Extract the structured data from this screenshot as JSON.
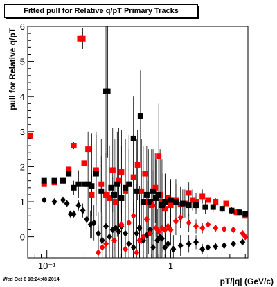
{
  "title": "Fitted pull for Relative q/pT  Primary Tracks",
  "timestamp": "Wed Oct  8 18:24:48 2014",
  "chart_data": {
    "type": "scatter",
    "title": "Fitted pull for Relative q/pT  Primary Tracks",
    "xlabel": "pT/|q| (GeV/c)",
    "ylabel": "pull for Relative q/pT",
    "xscale": "log",
    "xlim": [
      0.07,
      4.2
    ],
    "ylim": [
      -0.6,
      6
    ],
    "x_tick_labels": [
      {
        "value": 0.1,
        "label": "10⁻¹"
      },
      {
        "value": 1,
        "label": "1"
      }
    ],
    "y_ticks": [
      0,
      1,
      2,
      3,
      4,
      5,
      6
    ],
    "grid": false,
    "legend": "none",
    "series": [
      {
        "marker": "square",
        "color": "#ff0000",
        "points": [
          [
            0.073,
            2.88
          ],
          [
            0.095,
            1.5
          ],
          [
            0.115,
            1.55
          ],
          [
            0.135,
            1.6
          ],
          [
            0.15,
            1.92
          ],
          [
            0.165,
            2.6
          ],
          [
            0.185,
            5.65
          ],
          [
            0.195,
            5.65
          ],
          [
            0.2,
            2.1
          ],
          [
            0.215,
            2.5
          ],
          [
            0.23,
            1.2
          ],
          [
            0.25,
            1.9
          ],
          [
            0.275,
            1.5
          ],
          [
            0.3,
            1.2
          ],
          [
            0.32,
            1.1
          ],
          [
            0.34,
            1.9
          ],
          [
            0.36,
            1.0
          ],
          [
            0.38,
            1.6
          ],
          [
            0.4,
            1.85
          ],
          [
            0.43,
            1.3
          ],
          [
            0.46,
            1.5
          ],
          [
            0.5,
            1.7
          ],
          [
            0.54,
            2.05
          ],
          [
            0.58,
            1.3
          ],
          [
            0.62,
            1.8
          ],
          [
            0.66,
            1.0
          ],
          [
            0.7,
            0.9
          ],
          [
            0.75,
            1.4
          ],
          [
            0.8,
            2.3
          ],
          [
            0.82,
            1.2
          ],
          [
            0.85,
            1.0
          ],
          [
            0.9,
            0.8
          ],
          [
            0.95,
            1.1
          ],
          [
            1.0,
            0.9
          ],
          [
            1.1,
            1.05
          ],
          [
            1.2,
            0.92
          ],
          [
            1.3,
            0.95
          ],
          [
            1.4,
            1.25
          ],
          [
            1.5,
            1.05
          ],
          [
            1.6,
            1.0
          ],
          [
            1.8,
            1.15
          ],
          [
            2.0,
            1.05
          ],
          [
            2.3,
            1.0
          ],
          [
            2.8,
            0.95
          ],
          [
            3.4,
            0.7
          ],
          [
            4.0,
            0.6
          ]
        ],
        "errors": [
          0.05,
          0.05,
          0.05,
          0.05,
          0.1,
          0.1,
          0.3,
          0.3,
          0.5,
          0.5,
          0.6,
          1.0,
          0.8,
          1.2,
          1.5,
          1.2,
          1.8,
          1.5,
          1.2,
          1.5,
          1.0,
          1.2,
          1.0,
          1.5,
          1.2,
          1.5,
          1.6,
          1.0,
          1.5,
          1.3,
          1.2,
          1.0,
          0.8,
          0.7,
          0.6,
          0.5,
          0.4,
          0.3,
          0.3,
          0.25,
          0.2,
          0.15,
          0.12,
          0.1,
          0.08,
          0.06
        ]
      },
      {
        "marker": "square",
        "color": "#000000",
        "points": [
          [
            0.095,
            1.6
          ],
          [
            0.115,
            1.6
          ],
          [
            0.135,
            1.6
          ],
          [
            0.15,
            1.8
          ],
          [
            0.165,
            1.4
          ],
          [
            0.18,
            1.5
          ],
          [
            0.2,
            1.5
          ],
          [
            0.215,
            1.5
          ],
          [
            0.23,
            1.45
          ],
          [
            0.25,
            1.8
          ],
          [
            0.275,
            1.3
          ],
          [
            0.3,
            4.15
          ],
          [
            0.31,
            4.15
          ],
          [
            0.33,
            1.4
          ],
          [
            0.35,
            1.2
          ],
          [
            0.37,
            1.5
          ],
          [
            0.4,
            1.1
          ],
          [
            0.43,
            1.4
          ],
          [
            0.46,
            1.5
          ],
          [
            0.5,
            2.8
          ],
          [
            0.53,
            1.3
          ],
          [
            0.57,
            3.45
          ],
          [
            0.6,
            1.0
          ],
          [
            0.64,
            1.2
          ],
          [
            0.68,
            1.0
          ],
          [
            0.72,
            1.3
          ],
          [
            0.76,
            1.1
          ],
          [
            0.8,
            1.2
          ],
          [
            0.85,
            0.9
          ],
          [
            0.9,
            1.0
          ],
          [
            1.0,
            1.05
          ],
          [
            1.1,
            1.0
          ],
          [
            1.25,
            0.95
          ],
          [
            1.4,
            0.9
          ],
          [
            1.6,
            0.9
          ],
          [
            1.9,
            0.85
          ],
          [
            2.2,
            0.85
          ],
          [
            2.6,
            0.8
          ],
          [
            3.1,
            0.75
          ],
          [
            3.6,
            0.7
          ],
          [
            4.0,
            0.65
          ]
        ],
        "errors": [
          0.05,
          0.05,
          0.05,
          0.1,
          0.2,
          0.4,
          0.8,
          1.0,
          1.5,
          1.2,
          1.5,
          1.9,
          1.9,
          1.8,
          1.6,
          1.5,
          1.5,
          1.4,
          1.4,
          1.2,
          1.5,
          1.3,
          1.6,
          1.4,
          1.3,
          1.2,
          1.1,
          1.0,
          0.9,
          0.8,
          0.6,
          0.5,
          0.4,
          0.3,
          0.25,
          0.2,
          0.15,
          0.12,
          0.1,
          0.08,
          0.06
        ]
      },
      {
        "marker": "diamond",
        "color": "#000000",
        "points": [
          [
            0.095,
            1.05
          ],
          [
            0.115,
            1.0
          ],
          [
            0.135,
            1.05
          ],
          [
            0.145,
            0.95
          ],
          [
            0.155,
            0.65
          ],
          [
            0.165,
            0.65
          ],
          [
            0.18,
            0.9
          ],
          [
            0.195,
            0.75
          ],
          [
            0.21,
            0.5
          ],
          [
            0.225,
            0.35
          ],
          [
            0.24,
            0.4
          ],
          [
            0.26,
            0.1
          ],
          [
            0.28,
            -0.1
          ],
          [
            0.3,
            0.3
          ],
          [
            0.32,
            0.0
          ],
          [
            0.34,
            0.2
          ],
          [
            0.36,
            0.25
          ],
          [
            0.38,
            0.15
          ],
          [
            0.4,
            0.3
          ],
          [
            0.43,
            0.1
          ],
          [
            0.46,
            -0.2
          ],
          [
            0.5,
            -0.3
          ],
          [
            0.53,
            0.1
          ],
          [
            0.56,
            0.25
          ],
          [
            0.6,
            -0.1
          ],
          [
            0.64,
            0.05
          ],
          [
            0.68,
            0.2
          ],
          [
            0.72,
            -0.3
          ],
          [
            0.78,
            -0.1
          ],
          [
            0.82,
            0.0
          ],
          [
            0.85,
            -0.05
          ],
          [
            0.9,
            -0.3
          ],
          [
            0.95,
            -0.2
          ],
          [
            1.05,
            -0.35
          ],
          [
            1.2,
            -0.25
          ],
          [
            1.4,
            -0.2
          ],
          [
            1.6,
            -0.15
          ],
          [
            1.8,
            -0.35
          ],
          [
            2.0,
            -0.3
          ],
          [
            2.3,
            -0.28
          ],
          [
            2.7,
            -0.25
          ],
          [
            3.2,
            -0.2
          ],
          [
            3.8,
            -0.15
          ]
        ],
        "errors": [
          0.05,
          0.05,
          0.05,
          0.05,
          0.1,
          0.1,
          0.15,
          0.2,
          0.3,
          0.4,
          0.5,
          0.6,
          0.8,
          1.0,
          1.2,
          1.5,
          1.2,
          1.3,
          1.2,
          1.1,
          1.2,
          1.3,
          1.4,
          1.2,
          1.3,
          1.1,
          1.0,
          1.2,
          0.9,
          0.8,
          0.7,
          0.6,
          0.5,
          0.4,
          0.3,
          0.25,
          0.2,
          0.15,
          0.12,
          0.1,
          0.08,
          0.06,
          0.05
        ]
      },
      {
        "marker": "diamond",
        "color": "#ff0000",
        "points": [
          [
            0.26,
            -0.45
          ],
          [
            0.28,
            -0.3
          ],
          [
            0.3,
            -0.2
          ],
          [
            0.35,
            -0.1
          ],
          [
            0.4,
            0.35
          ],
          [
            0.43,
            -0.35
          ],
          [
            0.46,
            0.4
          ],
          [
            0.5,
            0.6
          ],
          [
            0.53,
            -0.45
          ],
          [
            0.56,
            -0.1
          ],
          [
            0.6,
            0.0
          ],
          [
            0.64,
            0.5
          ],
          [
            0.68,
            0.1
          ],
          [
            0.72,
            0.9
          ],
          [
            0.76,
            0.25
          ],
          [
            0.8,
            0.15
          ],
          [
            0.85,
            0.25
          ],
          [
            0.9,
            0.2
          ],
          [
            0.95,
            0.3
          ],
          [
            1.0,
            0.2
          ],
          [
            1.1,
            0.45
          ],
          [
            1.2,
            0.55
          ],
          [
            1.4,
            0.4
          ],
          [
            1.6,
            0.3
          ],
          [
            1.8,
            0.25
          ],
          [
            2.0,
            0.35
          ],
          [
            2.3,
            0.25
          ],
          [
            2.7,
            0.22
          ],
          [
            3.2,
            0.2
          ],
          [
            3.8,
            0.1
          ],
          [
            4.0,
            0.0
          ]
        ],
        "errors": [
          0.8,
          0.9,
          1.0,
          1.2,
          1.3,
          1.4,
          1.2,
          1.3,
          1.5,
          1.3,
          1.2,
          1.1,
          1.2,
          1.0,
          0.9,
          0.8,
          0.7,
          0.6,
          0.5,
          0.45,
          0.4,
          0.3,
          0.25,
          0.2,
          0.15,
          0.12,
          0.1,
          0.08,
          0.06,
          0.05,
          0.05
        ]
      }
    ]
  }
}
